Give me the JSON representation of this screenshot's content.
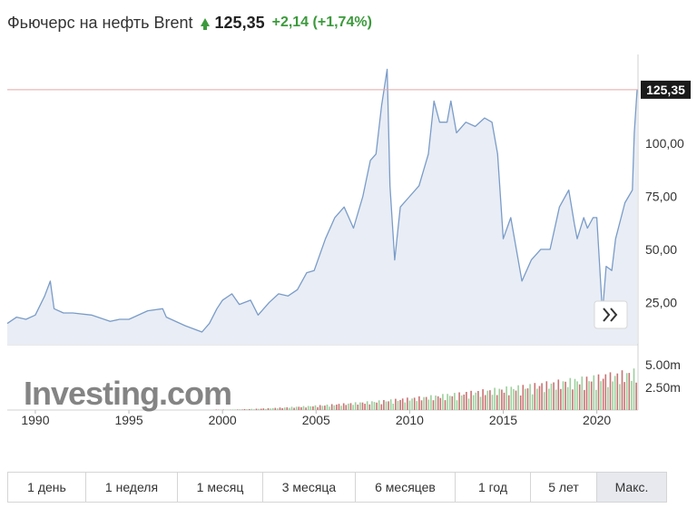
{
  "header": {
    "title": "Фьючерс на нефть Brent",
    "price": "125,35",
    "change": "+2,14",
    "change_pct": "(+1,74%)"
  },
  "chart_data": {
    "type": "area",
    "current_value_label": "125,35",
    "current_value": 125.35,
    "y_ticks": [
      "100,00",
      "75,00",
      "50,00",
      "25,00"
    ],
    "y_tick_values": [
      100,
      75,
      50,
      25
    ],
    "ylim": [
      5,
      142
    ],
    "volume_ticks": [
      "5.00m",
      "2.50m"
    ],
    "volume_tick_values": [
      5.0,
      2.5
    ],
    "x_ticks": [
      "1990",
      "1995",
      "2000",
      "2005",
      "2010",
      "2015",
      "2020"
    ],
    "x_tick_values": [
      1990,
      1995,
      2000,
      2005,
      2010,
      2015,
      2020
    ],
    "xlim": [
      1988.5,
      2022.2
    ],
    "watermark": "Investing.com",
    "series": [
      {
        "x": [
          1988.5,
          1989.0,
          1989.5,
          1990.0,
          1990.5,
          1990.8,
          1991.0,
          1991.5,
          1992.0,
          1993.0,
          1994.0,
          1994.5,
          1995.0,
          1996.0,
          1996.8,
          1997.0,
          1998.0,
          1998.9,
          1999.3,
          1999.7,
          2000.0,
          2000.5,
          2000.9,
          2001.5,
          2001.9,
          2002.5,
          2003.0,
          2003.5,
          2004.0,
          2004.5,
          2004.9,
          2005.5,
          2006.0,
          2006.5,
          2007.0,
          2007.5,
          2007.9,
          2008.2,
          2008.5,
          2008.8,
          2008.95,
          2009.2,
          2009.5,
          2010.0,
          2010.5,
          2011.0,
          2011.3,
          2011.6,
          2012.0,
          2012.2,
          2012.5,
          2013.0,
          2013.5,
          2014.0,
          2014.4,
          2014.7,
          2015.0,
          2015.4,
          2015.8,
          2016.0,
          2016.5,
          2017.0,
          2017.5,
          2018.0,
          2018.5,
          2018.8,
          2018.95,
          2019.3,
          2019.5,
          2019.8,
          2020.0,
          2020.3,
          2020.5,
          2020.8,
          2021.0,
          2021.5,
          2021.9,
          2022.0,
          2022.15
        ],
        "y": [
          15,
          18,
          17,
          19,
          28,
          35,
          22,
          20,
          20,
          19,
          16,
          17,
          17,
          21,
          22,
          18,
          14,
          11,
          15,
          22,
          26,
          29,
          24,
          26,
          19,
          25,
          29,
          28,
          31,
          39,
          40,
          55,
          65,
          70,
          60,
          75,
          92,
          95,
          118,
          135,
          80,
          45,
          70,
          75,
          80,
          95,
          120,
          110,
          110,
          120,
          105,
          110,
          108,
          112,
          110,
          95,
          55,
          65,
          45,
          35,
          45,
          50,
          50,
          70,
          78,
          62,
          55,
          65,
          60,
          65,
          65,
          20,
          42,
          40,
          55,
          72,
          78,
          105,
          125.35
        ]
      }
    ]
  },
  "tabs": [
    {
      "label": "1 день"
    },
    {
      "label": "1 неделя"
    },
    {
      "label": "1 месяц"
    },
    {
      "label": "3 месяца"
    },
    {
      "label": "6 месяцев"
    },
    {
      "label": "1 год"
    },
    {
      "label": "5 лет"
    },
    {
      "label": "Макс.",
      "active": true
    }
  ],
  "colors": {
    "line": "#7a9cc8",
    "fill": "#e9edf5",
    "current_line": "#e3a6a6",
    "label_bg": "#1a1a1a",
    "vol_up": "#9ccf9c",
    "vol_down": "#c97373",
    "up": "#3c9a3c"
  },
  "icons": {
    "scroll": "double-chevron-right-icon"
  }
}
